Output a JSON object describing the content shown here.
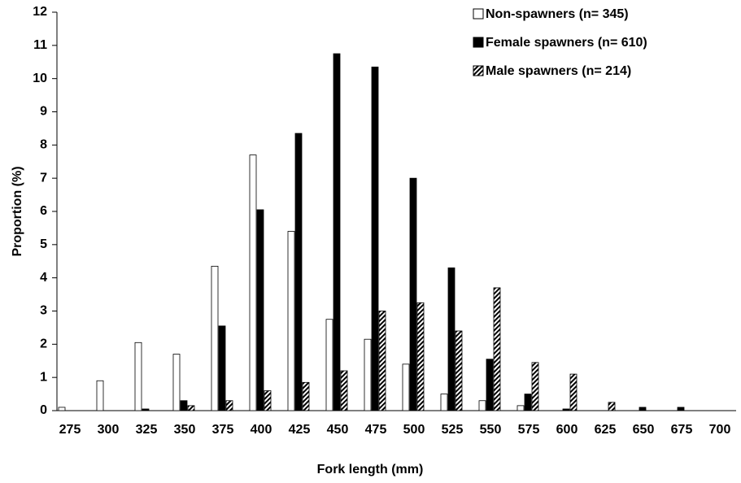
{
  "chart_data": {
    "type": "bar",
    "x_label": "Fork length (mm)",
    "y_label": "Proportion (%)",
    "categories": [
      "275",
      "300",
      "325",
      "350",
      "375",
      "400",
      "425",
      "450",
      "475",
      "500",
      "525",
      "550",
      "575",
      "600",
      "625",
      "650",
      "675",
      "700"
    ],
    "series": [
      {
        "name": "Non-spawners (n= 345)",
        "color": "#ffffff",
        "values": [
          0.1,
          0.9,
          2.05,
          1.7,
          4.35,
          7.7,
          5.4,
          2.75,
          2.15,
          1.4,
          0.5,
          0.3,
          0.15,
          0,
          0,
          0,
          0,
          0
        ]
      },
      {
        "name": "Female spawners (n= 610)",
        "color": "#000000",
        "values": [
          0,
          0,
          0.05,
          0.3,
          2.55,
          6.05,
          8.35,
          10.75,
          10.35,
          7.0,
          4.3,
          1.55,
          0.5,
          0.05,
          0,
          0.1,
          0.1,
          0
        ]
      },
      {
        "name": "Male spawners (n= 214)",
        "color": "hatched",
        "values": [
          0,
          0,
          0,
          0.15,
          0.3,
          0.6,
          0.85,
          1.2,
          3.0,
          3.25,
          2.4,
          3.7,
          1.45,
          1.1,
          0.25,
          0,
          0,
          0
        ]
      }
    ],
    "ylim": [
      0,
      12
    ],
    "yticks": [
      0,
      1,
      2,
      3,
      4,
      5,
      6,
      7,
      8,
      9,
      10,
      11,
      12
    ],
    "grid": false,
    "legend": "top-right"
  }
}
